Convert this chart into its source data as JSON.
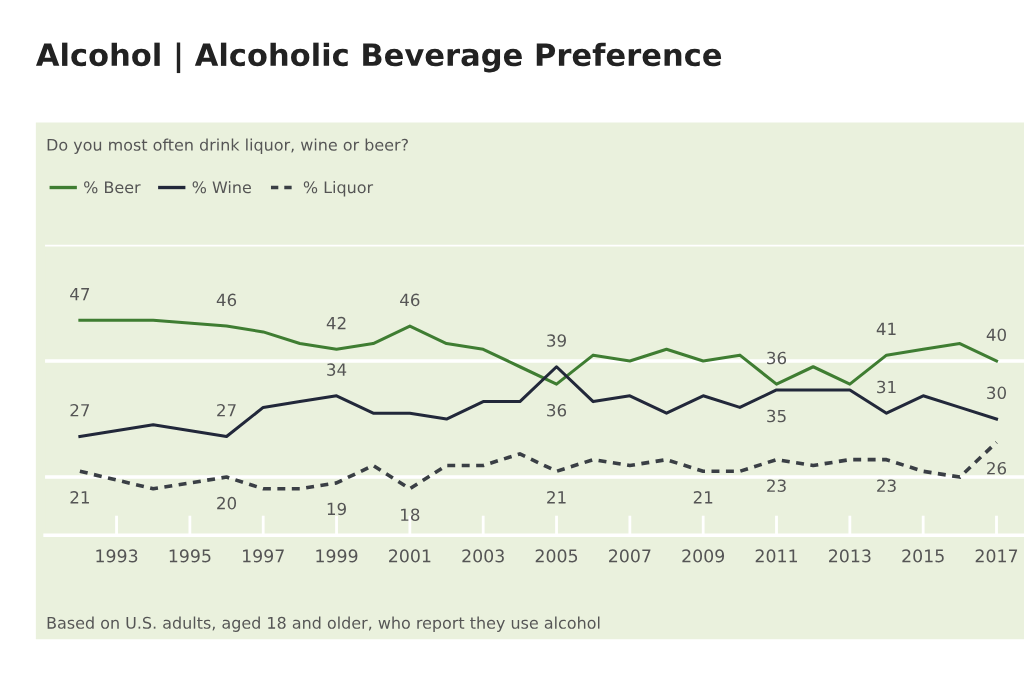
{
  "chart_data": {
    "type": "line",
    "title": "Alcohol | Alcoholic Beverage Preference",
    "subtitle": "Do you most often drink liquor, wine or beer?",
    "annotations": [
      "Based on U.S. adults, aged 18 and older, who report they use alcohol"
    ],
    "x": [
      1992,
      1994,
      1996,
      1997,
      1998,
      1999,
      2000,
      2001,
      2002,
      2003,
      2004,
      2005,
      2006,
      2007,
      2008,
      2009,
      2010,
      2011,
      2012,
      2013,
      2014,
      2015,
      2016,
      2017
    ],
    "series": [
      {
        "name": "% Beer",
        "color": "#3f7d32",
        "line_style": "solid",
        "values": [
          47,
          47,
          46,
          45,
          43,
          42,
          43,
          46,
          43,
          42,
          39,
          36,
          41,
          40,
          42,
          40,
          41,
          36,
          39,
          36,
          41,
          42,
          43,
          40
        ],
        "value_labels": [
          "47",
          null,
          "46",
          null,
          null,
          "42",
          null,
          "46",
          null,
          null,
          null,
          "36",
          null,
          null,
          null,
          null,
          null,
          "36",
          null,
          null,
          "41",
          null,
          null,
          "40"
        ]
      },
      {
        "name": "% Wine",
        "color": "#22283a",
        "line_style": "solid",
        "values": [
          27,
          29,
          27,
          32,
          33,
          34,
          31,
          31,
          30,
          33,
          33,
          39,
          33,
          34,
          31,
          34,
          32,
          35,
          35,
          35,
          31,
          34,
          32,
          30
        ],
        "value_labels": [
          "27",
          null,
          "27",
          null,
          null,
          "34",
          null,
          null,
          null,
          null,
          null,
          "39",
          null,
          null,
          null,
          null,
          null,
          "35",
          null,
          null,
          "31",
          null,
          null,
          "30"
        ]
      },
      {
        "name": "% Liquor",
        "color": "#3a3f45",
        "line_style": "dashed",
        "values": [
          21,
          18,
          20,
          18,
          18,
          19,
          22,
          18,
          22,
          22,
          24,
          21,
          23,
          22,
          23,
          21,
          21,
          23,
          22,
          23,
          23,
          21,
          20,
          26
        ],
        "value_labels": [
          "21",
          null,
          "20",
          null,
          null,
          "19",
          null,
          "18",
          null,
          null,
          null,
          "21",
          null,
          null,
          null,
          "21",
          null,
          "23",
          null,
          null,
          "23",
          null,
          null,
          "26"
        ]
      }
    ],
    "xlim": [
      1991.05,
      2017.75
    ],
    "xticks": [
      1993,
      1995,
      1997,
      1999,
      2001,
      2003,
      2005,
      2007,
      2009,
      2011,
      2013,
      2015,
      2017
    ],
    "ylim": [
      10,
      60
    ],
    "yticks": [
      {
        "value": 20,
        "label": null
      },
      {
        "value": 40,
        "label": null
      },
      {
        "value": 60,
        "label": null
      }
    ],
    "tick_labels": "x",
    "grid": "y",
    "legend": "top left",
    "marker": "none"
  }
}
